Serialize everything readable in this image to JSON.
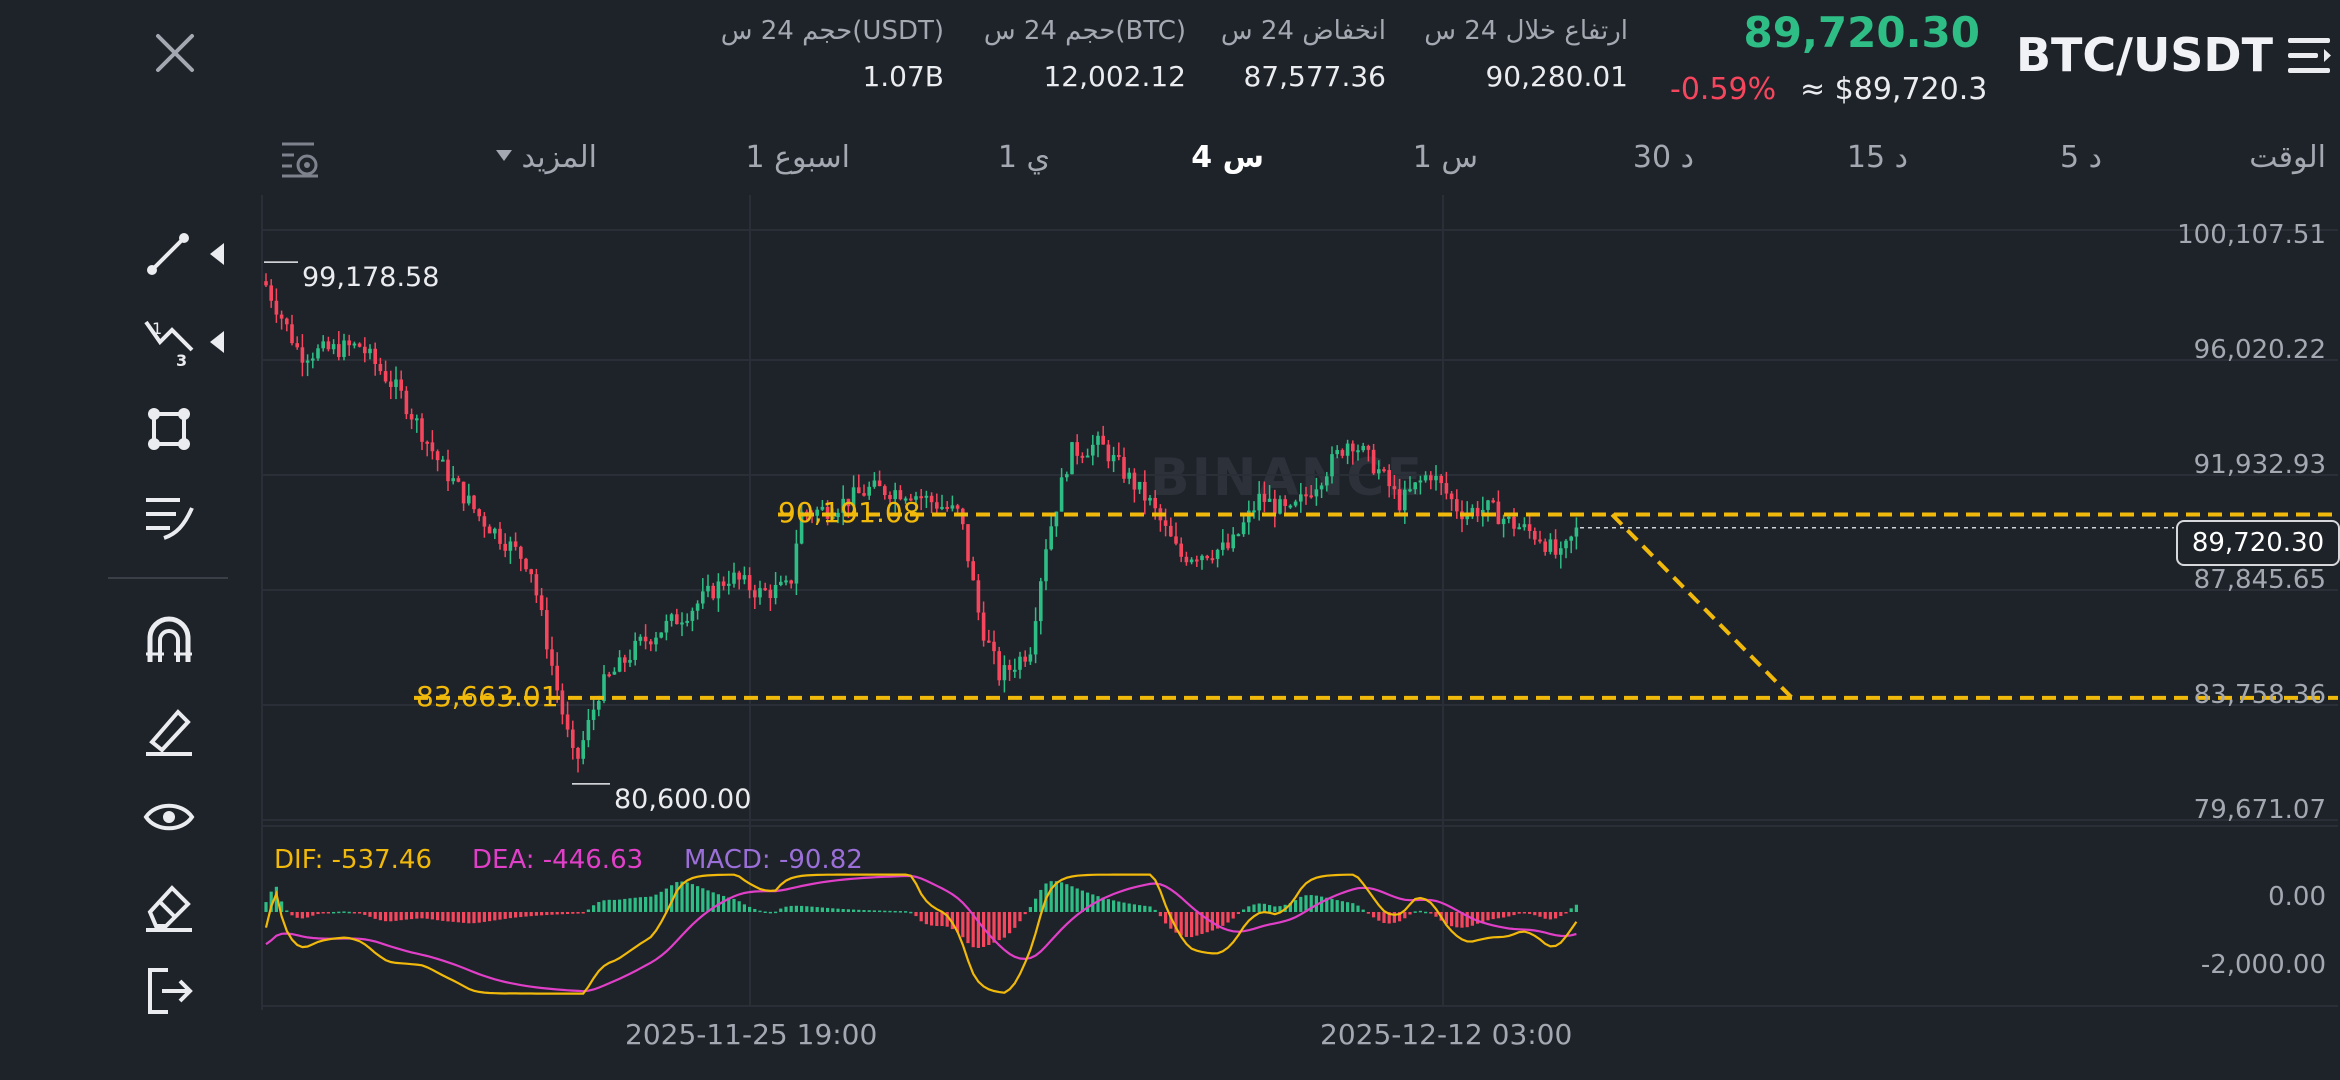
{
  "header": {
    "pair": "BTC/USDT",
    "last_price": "89,720.30",
    "change_pct": "-0.59%",
    "approx_usd": "≈ $89,720.3",
    "stats": [
      {
        "label": "ارتفاع خلال 24 س",
        "value": "90,280.01"
      },
      {
        "label": "انخفاض 24 س",
        "value": "87,577.36"
      },
      {
        "label": "حجم 24 س(BTC)",
        "value": "12,002.12"
      },
      {
        "label": "حجم 24 س(USDT)",
        "value": "1.07B"
      }
    ]
  },
  "timeframes": {
    "label": "الوقت",
    "items": [
      "5 د",
      "15 د",
      "30 د",
      "1 س",
      "4 س",
      "1 ي",
      "1 اسبوع"
    ],
    "active": "4 س",
    "more": "المزيد"
  },
  "icons": {
    "close": "close-icon",
    "menu": "menu-icon",
    "settings": "chart-settings-icon",
    "tools": [
      "line-tool-icon",
      "fib-tool-icon",
      "shape-tool-icon",
      "indicator-tool-icon",
      "magnet-icon",
      "pencil-icon",
      "eye-icon",
      "eraser-icon",
      "exit-icon"
    ]
  },
  "chart": {
    "watermark": "BINANCE",
    "current_price_tag": "89,720.30",
    "high_label": "99,178.58",
    "low_label": "80,600.00",
    "level_upper": "90,191.08",
    "level_lower": "83,663.01"
  },
  "chart_data": {
    "type": "candlestick",
    "symbol": "BTC/USDT",
    "interval": "4 س",
    "y_ticks": [
      "100,107.51",
      "96,020.22",
      "91,932.93",
      "87,845.65",
      "83,758.36",
      "79,671.07"
    ],
    "x_ticks": [
      "2025-11-25 19:00",
      "2025-12-12 03:00"
    ],
    "annotations": {
      "period_high": 99178.58,
      "period_low": 80600.0,
      "horizontal_levels": [
        90191.08,
        83663.01
      ],
      "current_price": 89720.3
    },
    "macd": {
      "dif": "DIF: -537.46",
      "dea": "DEA: -446.63",
      "macd": "MACD: -90.82",
      "y_ticks": [
        "0.00",
        "-2,000.00"
      ]
    },
    "colors": {
      "up": "#2ebd85",
      "down": "#f6465d",
      "level": "#f0b90b",
      "dif": "#f0b90b",
      "dea": "#e040c8",
      "macd": "#9b6fd8"
    }
  }
}
